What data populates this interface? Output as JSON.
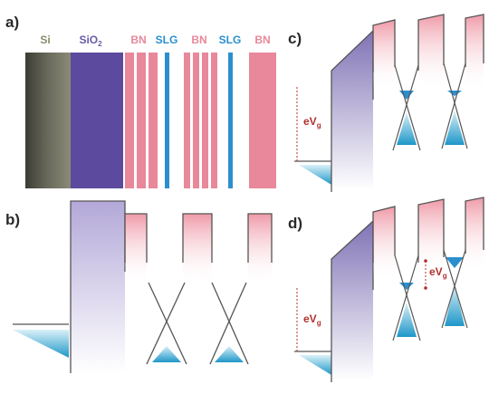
{
  "panels": {
    "a": "a)",
    "b": "b)",
    "c": "c)",
    "d": "d)"
  },
  "layers": [
    {
      "label": "Si",
      "color": "#8a8a6a"
    },
    {
      "label": "SiO",
      "sub": "2",
      "color": "#6a5aa8"
    },
    {
      "label": "BN",
      "color": "#e8889a"
    },
    {
      "label": "SLG",
      "color": "#2b8fcf"
    },
    {
      "label": "BN",
      "color": "#e8889a"
    },
    {
      "label": "SLG",
      "color": "#2b8fcf"
    },
    {
      "label": "BN",
      "color": "#e8889a"
    }
  ],
  "annotations": {
    "c_ev": "eV",
    "c_ev_sub": "g",
    "d_ev": "eV",
    "d_ev_sub": "g",
    "d_ev2": "eV",
    "d_ev2_sub": "g"
  },
  "colors": {
    "si": "#5e5e52",
    "sio2": "#5b4a9e",
    "bn": "#e8889a",
    "slg": "#2b8fcf",
    "cone": "#3aa7d0",
    "line": "#555555",
    "accent": "#b0302e"
  }
}
